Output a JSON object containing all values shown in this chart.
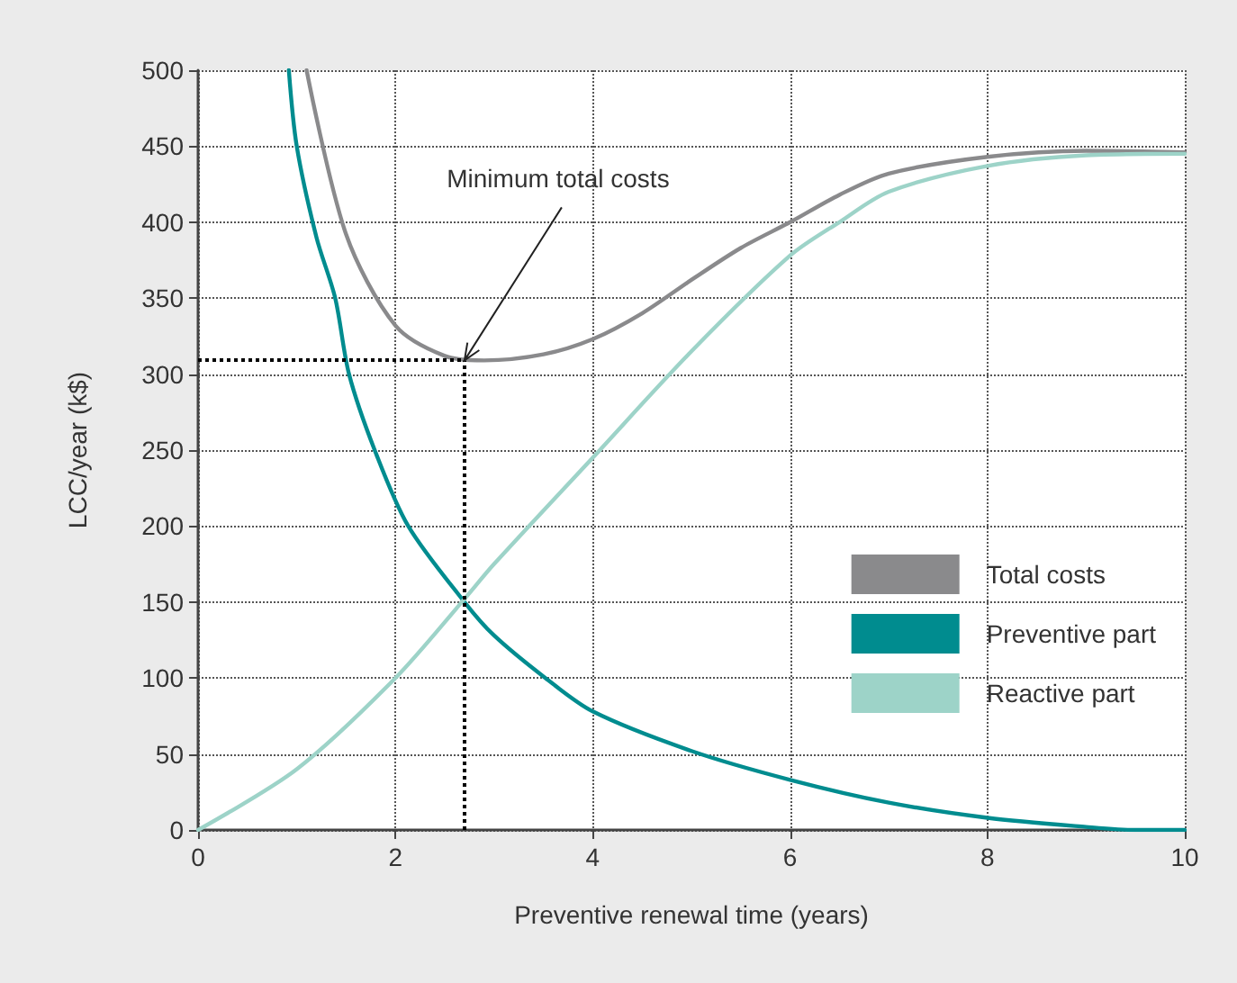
{
  "chart_data": {
    "type": "line",
    "xlabel": "Preventive renewal time (years)",
    "ylabel": "LCC/year (k$)",
    "xlim": [
      0,
      10
    ],
    "xticks": [
      0,
      2,
      4,
      6,
      8,
      10
    ],
    "ylim": [
      0,
      500
    ],
    "yticks": [
      0,
      50,
      100,
      150,
      200,
      250,
      300,
      350,
      400,
      450,
      500
    ],
    "grid": true,
    "legend": "bottom right",
    "marker": "none",
    "line_style": "solid",
    "annotations": [
      {
        "text": "Minimum total costs",
        "x": 2.7,
        "y": 309
      }
    ],
    "ref_lines": [
      {
        "axis": "y",
        "value": 309,
        "color": "#000000",
        "line_style": "dotted"
      },
      {
        "axis": "x",
        "value": 2.7,
        "color": "#000000",
        "line_style": "dotted"
      }
    ],
    "series": [
      {
        "name": "Total costs",
        "color": "#8a8a8c",
        "x": [
          1.1,
          1.5,
          2,
          2.5,
          2.9,
          3.5,
          4,
          4.5,
          5,
          5.5,
          6,
          6.5,
          7,
          8,
          9,
          10
        ],
        "values": [
          500,
          392,
          332,
          312,
          309,
          313,
          323,
          340,
          362,
          383,
          400,
          418,
          432,
          443,
          447,
          446
        ]
      },
      {
        "name": "Preventive part",
        "color": "#008c8f",
        "x": [
          0.92,
          1.0,
          1.2,
          1.39,
          1.53,
          1.79,
          2.13,
          2.7,
          3.0,
          3.52,
          4,
          5,
          6,
          7,
          8,
          9,
          9.5,
          10
        ],
        "values": [
          500,
          450,
          390,
          350,
          300,
          250,
          200,
          150,
          128,
          100,
          78,
          52,
          33,
          18,
          8,
          2,
          0,
          0
        ]
      },
      {
        "name": "Reactive part",
        "color": "#9dd3c8",
        "x": [
          0,
          1,
          2,
          2.7,
          3,
          4,
          5,
          6,
          6.5,
          7,
          8,
          9,
          10
        ],
        "values": [
          0,
          40,
          100,
          152,
          175,
          245,
          315,
          378,
          400,
          420,
          437,
          444,
          445
        ]
      }
    ]
  }
}
